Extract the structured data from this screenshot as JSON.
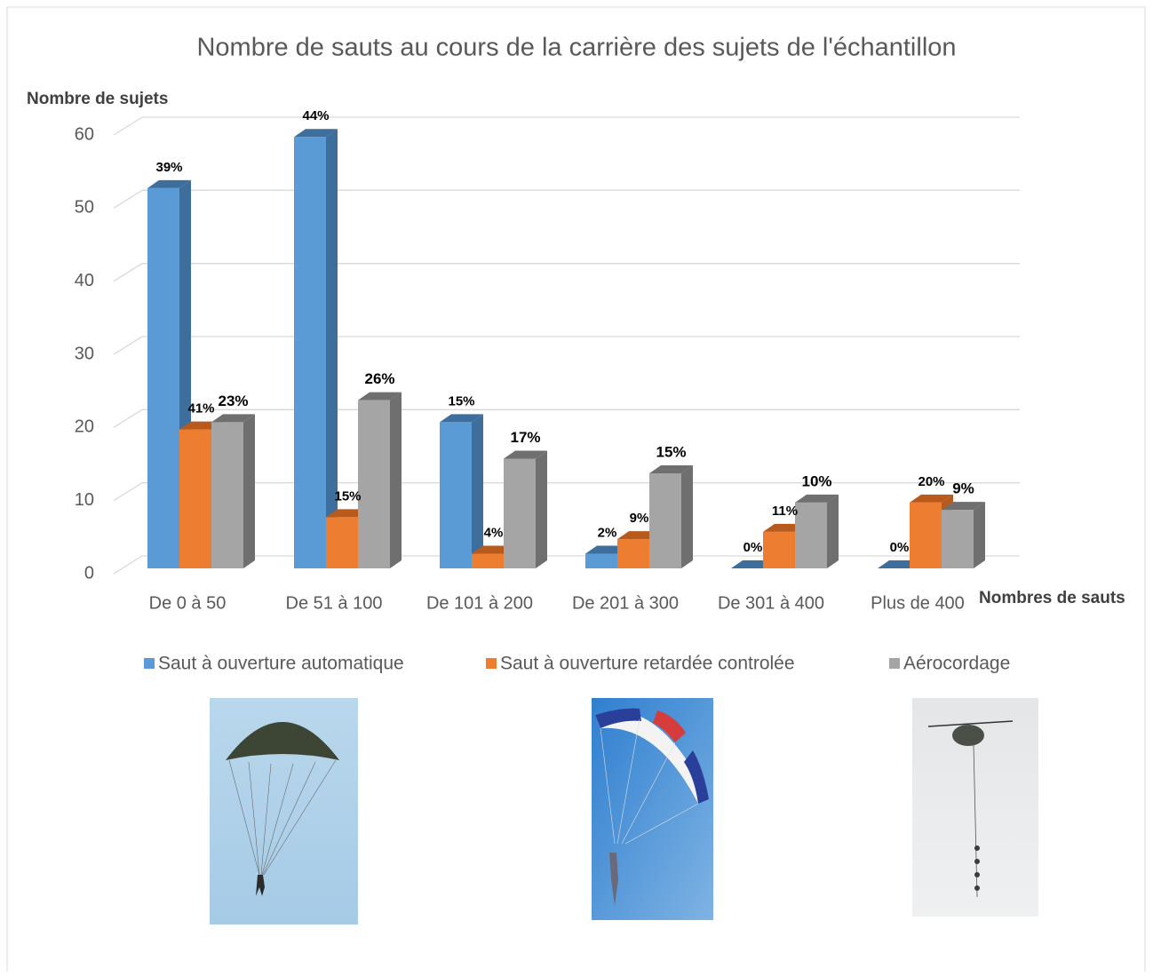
{
  "chart_data": {
    "type": "bar3d",
    "title": "Nombre de sauts au cours de la carrière des sujets de l'échantillon",
    "y_label": "Nombre de sujets",
    "x_label": "Nombres de sauts",
    "categories": [
      "De 0 à 50",
      "De 51 à 100",
      "De 101 à 200",
      "De 201 à 300",
      "De 301 à 400",
      "Plus de 400"
    ],
    "series": [
      {
        "name": "Saut à ouverture automatique",
        "color": "#5b9bd5",
        "side": "#3e6f9c",
        "values": [
          52,
          59,
          20,
          2,
          0,
          0
        ],
        "percentages": [
          "39%",
          "44%",
          "15%",
          "2%",
          "0%",
          "0%"
        ]
      },
      {
        "name": "Saut à ouverture retardée controlée",
        "color": "#ed7d31",
        "side": "#b85a1c",
        "values": [
          19,
          7,
          2,
          4,
          5,
          9
        ],
        "percentages": [
          "41%",
          "15%",
          "4%",
          "9%",
          "11%",
          "20%"
        ]
      },
      {
        "name": "Aérocordage",
        "color": "#a5a5a5",
        "side": "#6f6f6f",
        "values": [
          20,
          23,
          15,
          13,
          9,
          8
        ],
        "percentages": [
          "23%",
          "26%",
          "17%",
          "15%",
          "10%",
          "9%"
        ]
      }
    ],
    "ylim": [
      0,
      60
    ],
    "yticks": [
      0,
      10,
      20,
      30,
      40,
      50,
      60
    ],
    "grid": true,
    "legend": "bottom"
  }
}
